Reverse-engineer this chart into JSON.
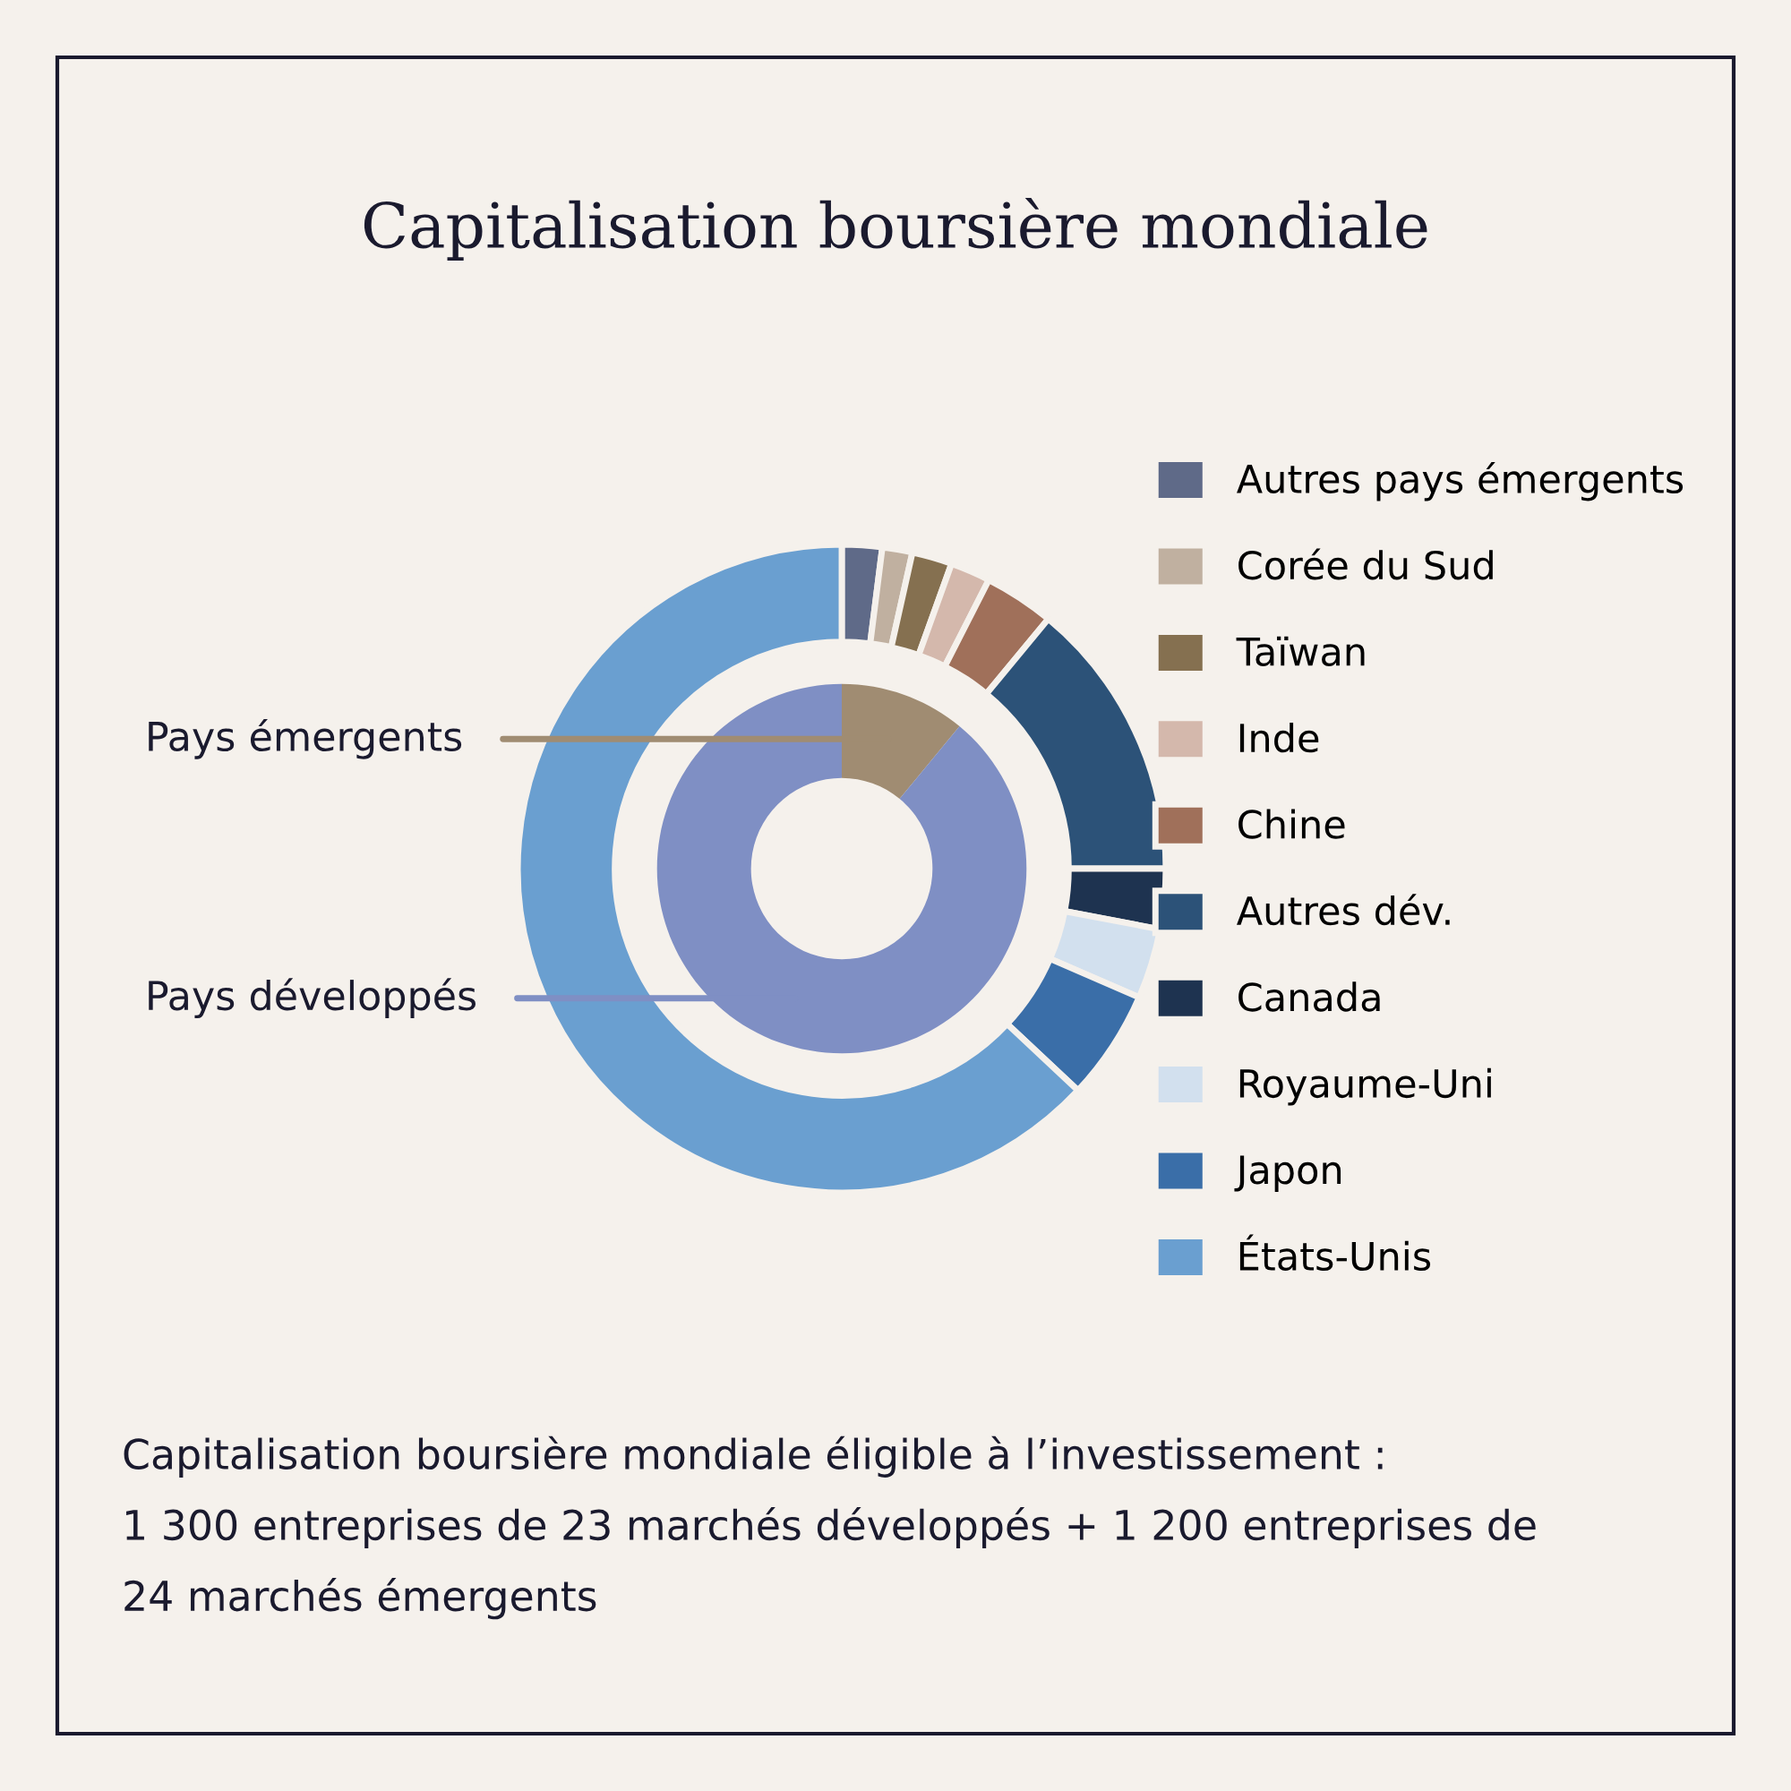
{
  "chart_data": {
    "type": "donut",
    "title": "Capitalisation boursière mondiale",
    "legend": "right",
    "annotations": [
      "Capitalisation boursière mondiale éligible à l’investissement :\n1 300 entreprises de 23 marchés développés + 1 200 entreprises de\n24 marchés émergents"
    ],
    "categories": [
      "Pays émergents",
      "Pays développés",
      "Autres pays émergents",
      "Corée du Sud",
      "Taïwan",
      "Inde",
      "Chine",
      "Autres dév.",
      "Canada",
      "Royaume-Uni",
      "Japon",
      "États-Unis"
    ],
    "colors": [
      "#a08c72",
      "#7f8fc4",
      "#5f6a88",
      "#c0b0a0",
      "#857050",
      "#d4b8ac",
      "#a0705a",
      "#2c5278",
      "#1e3350",
      "#d2e0ee",
      "#3a6ea8",
      "#6a9fd0"
    ],
    "series": [
      {
        "values": [
          11,
          89,
          null,
          null,
          null,
          null,
          null,
          null,
          null,
          null,
          null,
          null
        ]
      },
      {
        "values": [
          null,
          null,
          2,
          1.5,
          2,
          2,
          3.5,
          14,
          3,
          3.5,
          5.5,
          63
        ]
      }
    ]
  }
}
